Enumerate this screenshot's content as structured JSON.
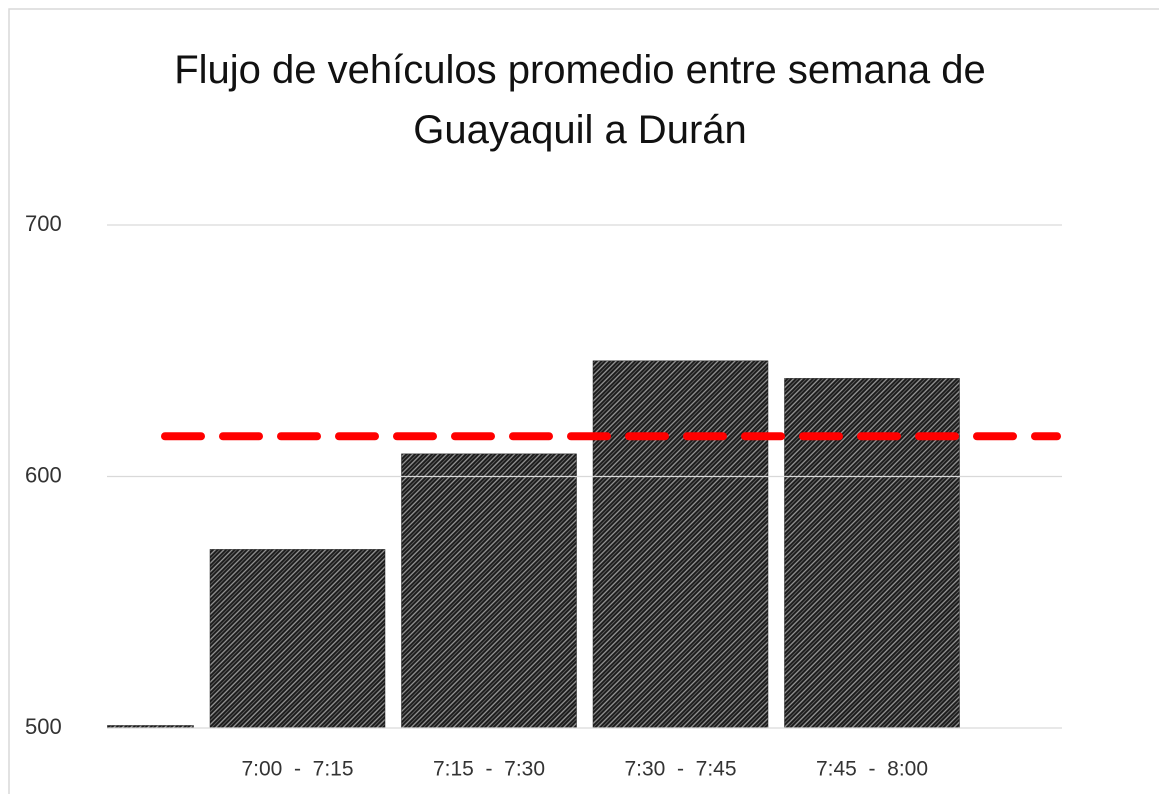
{
  "chart_data": {
    "type": "bar",
    "title": "Flujo de vehículos promedio entre semana de Guayaquil a Durán",
    "categories": [
      null,
      "7:00  -  7:15",
      "7:15  -  7:30",
      "7:30  -  7:45",
      "7:45  -  8:00"
    ],
    "values": [
      501,
      571,
      609,
      646,
      639
    ],
    "color": "#1a1a1a",
    "reference_line": {
      "value": 616,
      "color": "#ff0000"
    },
    "ylim": [
      500,
      700
    ],
    "yticks": [
      500,
      600,
      700
    ],
    "grid": true
  }
}
